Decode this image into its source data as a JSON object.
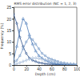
{
  "chart_data": {
    "type": "line",
    "title": "RMS error distribution (NC = 1, 2, 3)",
    "x_label": "Depth (cm)",
    "y_label": "Frequency (%)",
    "x": [
      0,
      5,
      10,
      15,
      20,
      25,
      30,
      35,
      40,
      45,
      50,
      55,
      60,
      65,
      70,
      75,
      80,
      85,
      90,
      95,
      100
    ],
    "series": [
      {
        "color": "#2b4f8a",
        "marker": "circle",
        "values": [
          22,
          18,
          12,
          8,
          5,
          3,
          2,
          1.5,
          1,
          0.8,
          0.5,
          0.4,
          0.3,
          0.2,
          0.2,
          0.1,
          0.1,
          0.1,
          0,
          0,
          0
        ]
      },
      {
        "color": "#4a7ab8",
        "marker": "triangle",
        "values": [
          2,
          8,
          15,
          20,
          18,
          13,
          9,
          6,
          4,
          3,
          2,
          1.5,
          1,
          0.8,
          0.5,
          0.4,
          0.3,
          0.2,
          0.1,
          0.1,
          0
        ]
      },
      {
        "color": "#6f94c4",
        "marker": "square",
        "values": [
          0.5,
          2,
          4,
          7,
          10,
          12,
          11,
          9,
          7,
          5,
          4,
          3,
          2.5,
          2,
          1.5,
          1,
          0.8,
          0.5,
          0.4,
          0.3,
          0.2
        ]
      },
      {
        "color": "#9fb6d6",
        "marker": "diamond",
        "values": [
          0,
          0.5,
          1,
          1.5,
          2,
          2.5,
          3,
          3,
          2.8,
          2.5,
          2.2,
          2,
          1.8,
          1.5,
          1.3,
          1,
          0.8,
          0.6,
          0.5,
          0.4,
          0.3
        ]
      }
    ],
    "xlim": [
      0,
      100
    ],
    "xticks": [
      0,
      20,
      40,
      60,
      80,
      100
    ],
    "ylim": [
      0,
      25
    ],
    "yticks": [
      0,
      5,
      10,
      15,
      20,
      25
    ],
    "grid": false
  }
}
